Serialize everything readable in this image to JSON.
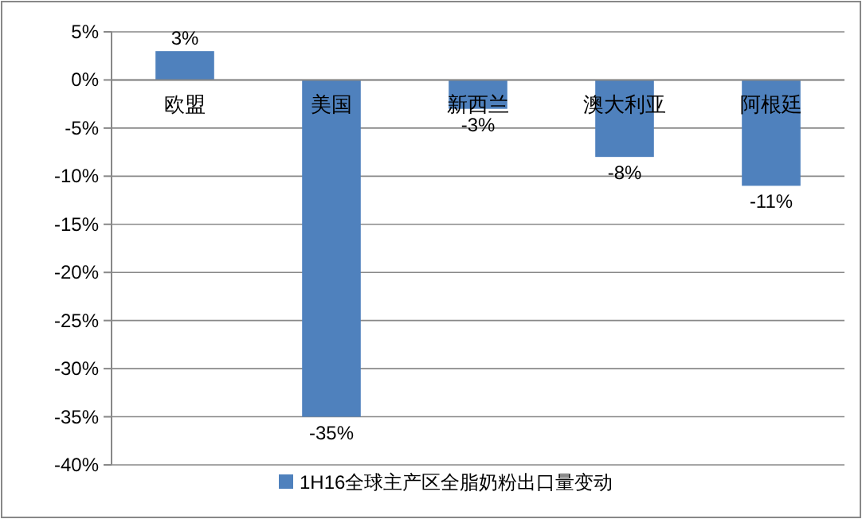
{
  "chart_data": {
    "type": "bar",
    "categories": [
      "欧盟",
      "美国",
      "新西兰",
      "澳大利亚",
      "阿根廷"
    ],
    "series": [
      {
        "name": "1H16全球主产区全脂奶粉出口量变动",
        "color": "#4f81bd",
        "values": [
          3,
          -35,
          -3,
          -8,
          -11
        ],
        "value_labels": [
          "3%",
          "-35%",
          "-3%",
          "-8%",
          "-11%"
        ]
      }
    ],
    "ylim": [
      -40,
      5
    ],
    "yticks": [
      {
        "value": 5,
        "label": "5%"
      },
      {
        "value": 0,
        "label": "0%"
      },
      {
        "value": -5,
        "label": "-5%"
      },
      {
        "value": -10,
        "label": "-10%"
      },
      {
        "value": -15,
        "label": "-15%"
      },
      {
        "value": -20,
        "label": "-20%"
      },
      {
        "value": -25,
        "label": "-25%"
      },
      {
        "value": -30,
        "label": "-30%"
      },
      {
        "value": -35,
        "label": "-35%"
      },
      {
        "value": -40,
        "label": "-40%"
      }
    ],
    "grid": true,
    "legend": "bottom"
  }
}
